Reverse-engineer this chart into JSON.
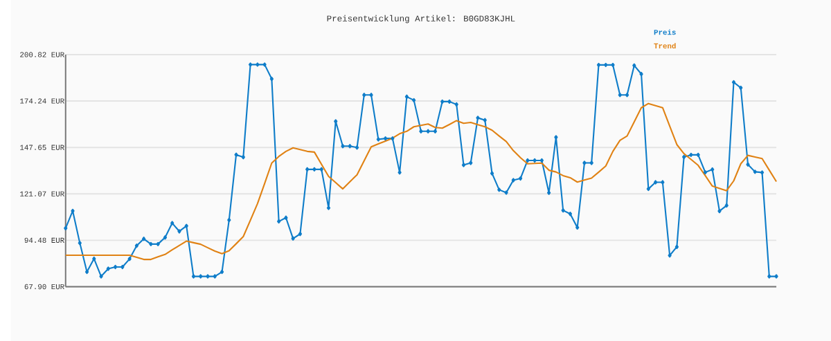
{
  "chart_data": {
    "type": "line",
    "title": "Preisentwicklung Artikel: B0GD83KJHL",
    "categories": [
      null,
      null,
      null,
      null,
      null,
      null,
      null,
      null,
      null,
      null,
      null,
      null,
      null,
      null,
      null,
      null,
      null,
      null,
      null,
      null,
      null,
      null,
      null,
      null,
      null,
      null,
      null,
      null,
      null,
      null,
      null,
      null,
      null,
      null,
      null,
      null,
      null,
      null,
      null,
      null,
      null,
      null,
      null,
      null,
      null,
      null,
      null,
      null,
      null,
      null,
      null,
      null,
      null,
      null,
      null,
      null,
      null,
      null,
      null,
      null,
      null,
      null,
      null,
      null,
      null,
      null,
      null,
      null,
      null,
      null,
      null,
      null,
      null,
      null,
      null,
      null,
      null,
      null,
      null,
      null,
      null,
      null,
      null,
      null,
      null,
      null,
      null,
      null,
      null,
      null,
      null,
      null,
      null,
      null,
      null,
      null,
      null,
      null,
      null,
      null,
      null
    ],
    "series": [
      {
        "name": "Preis",
        "color": "#0f7dc9",
        "marker": "diamond",
        "values": [
          101.4,
          111.3,
          92.9,
          76.4,
          83.9,
          73.8,
          78.2,
          79.2,
          79.2,
          83.8,
          91.4,
          95.3,
          92.3,
          92.3,
          96.1,
          104.3,
          99.6,
          102.7,
          73.8,
          73.8,
          73.8,
          73.8,
          76.4,
          106.1,
          143.5,
          142.1,
          195.1,
          195.1,
          195.1,
          186.9,
          105.3,
          107.4,
          95.5,
          98.1,
          135.1,
          135.1,
          135.1,
          113.0,
          162.6,
          148.4,
          148.4,
          147.6,
          177.7,
          177.7,
          152.3,
          152.8,
          152.8,
          133.3,
          176.7,
          174.7,
          156.9,
          156.9,
          156.9,
          173.9,
          173.9,
          172.3,
          137.6,
          138.8,
          164.6,
          163.3,
          132.8,
          123.4,
          121.8,
          128.9,
          129.9,
          140.2,
          140.2,
          140.2,
          121.7,
          153.5,
          111.6,
          109.6,
          101.8,
          138.8,
          138.8,
          194.9,
          194.9,
          194.9,
          177.7,
          177.7,
          194.6,
          189.7,
          123.9,
          127.7,
          127.7,
          85.8,
          90.7,
          142.2,
          143.4,
          143.4,
          133.4,
          135.0,
          111.2,
          114.4,
          185.0,
          181.8,
          137.9,
          133.7,
          133.3,
          73.8,
          73.8
        ]
      },
      {
        "name": "Trend",
        "color": "#e08214",
        "marker": "none",
        "values": [
          85.9,
          85.9,
          85.9,
          85.9,
          85.9,
          85.9,
          85.9,
          85.9,
          85.9,
          85.9,
          84.7,
          83.5,
          83.5,
          85.0,
          86.4,
          89.0,
          91.5,
          94.0,
          93.1,
          92.2,
          90.2,
          88.3,
          86.8,
          88.5,
          92.5,
          96.6,
          106.0,
          115.5,
          127.0,
          138.7,
          142.5,
          145.4,
          147.4,
          146.4,
          145.4,
          145.0,
          138.0,
          131.1,
          127.5,
          123.9,
          128.0,
          132.0,
          140.0,
          148.0,
          149.7,
          151.3,
          153.0,
          155.5,
          156.9,
          159.5,
          160.3,
          161.1,
          159.1,
          158.7,
          160.8,
          163.0,
          161.5,
          162.0,
          160.7,
          159.5,
          157.5,
          154.2,
          151.0,
          145.8,
          141.8,
          138.3,
          138.5,
          138.7,
          134.6,
          133.6,
          131.5,
          130.3,
          127.8,
          129.0,
          130.1,
          133.5,
          137.0,
          145.4,
          151.7,
          154.2,
          162.3,
          170.4,
          172.8,
          171.6,
          170.4,
          159.8,
          149.3,
          144.1,
          140.8,
          137.4,
          131.5,
          125.5,
          124.2,
          122.9,
          128.5,
          138.3,
          143.1,
          142.2,
          141.3,
          134.7,
          128.1
        ]
      }
    ],
    "ylim": [
      67.9,
      200.82
    ],
    "yticks": [
      {
        "value": 67.9,
        "label": "67.90 EUR"
      },
      {
        "value": 94.48,
        "label": "94.48 EUR"
      },
      {
        "value": 121.07,
        "label": "121.07 EUR"
      },
      {
        "value": 147.65,
        "label": "147.65 EUR"
      },
      {
        "value": 174.24,
        "label": "174.24 EUR"
      },
      {
        "value": 200.82,
        "label": "200.82 EUR"
      }
    ],
    "grid": "y",
    "legend": "top right",
    "line_style": "solid"
  }
}
